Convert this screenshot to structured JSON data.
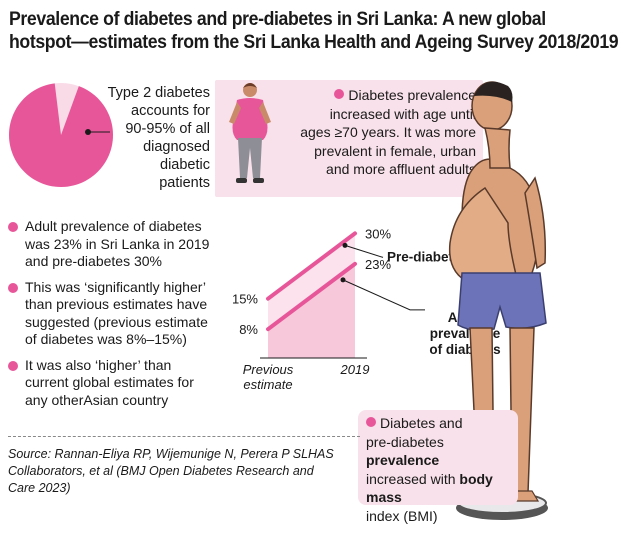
{
  "title": {
    "line1": "Prevalence of diabetes and pre-diabetes in Sri Lanka: A new global",
    "line2": "hotspot—estimates from the Sri Lanka Health and Ageing Survey 2018/2019"
  },
  "pie": {
    "share_percent": 92.5,
    "text": [
      "Type 2 diabetes",
      "accounts for",
      "90-95% of all",
      "diagnosed",
      "diabetic",
      "patients"
    ]
  },
  "age_box": {
    "text": [
      "Diabetes prevalence",
      "increased with age until",
      "ages ≥70 years. It was more",
      "prevalent in female, urban",
      "and more affluent adults"
    ]
  },
  "bullets": [
    {
      "lines": [
        "Adult prevalence of diabetes",
        "was 23% in Sri Lanka in 2019",
        "and pre-diabetes 30%"
      ]
    },
    {
      "lines": [
        "This was ‘significantly higher’",
        "than previous estimates have",
        "suggested (previous estimate",
        "of diabetes was 8%–15%)"
      ]
    },
    {
      "lines": [
        "It was also ‘higher’ than",
        "current global estimates for",
        "any otherAsian country"
      ]
    }
  ],
  "chart_data": {
    "type": "line",
    "categories": [
      "Previous estimate",
      "2019"
    ],
    "x_labels": [
      [
        "Previous",
        "estimate"
      ],
      [
        "2019"
      ]
    ],
    "series": [
      {
        "name": "Pre-diabetes",
        "values": [
          15,
          30
        ],
        "value_labels": [
          "15%",
          "30%"
        ],
        "label_lines": [
          "Pre-diabetes"
        ]
      },
      {
        "name": "Adult prevalence of diabetes",
        "values": [
          8,
          23
        ],
        "value_labels": [
          "8%",
          "23%"
        ],
        "label_lines": [
          "Adult",
          "prevalence",
          "of diabetes"
        ]
      }
    ],
    "colors": {
      "line": "#e8569a",
      "fill": "#f6c8da",
      "fill_light": "#fbe2ec"
    }
  },
  "bmi_box": {
    "line1": "Diabetes and",
    "line2_a": "pre-diabetes ",
    "line2_b": "prevalence",
    "line3_a": "increased with ",
    "line3_b": "body mass",
    "line4": "index (BMI)"
  },
  "source": {
    "lines": [
      "Source: Rannan-Eliya RP, Wijemunige N, Perera P SLHAS",
      "Collaborators, et al (BMJ Open Diabetes Research and",
      "Care 2023)"
    ]
  },
  "colors": {
    "accent": "#e8569a",
    "panel": "#f8e1ea",
    "pie_light": "#f9dbe7"
  }
}
